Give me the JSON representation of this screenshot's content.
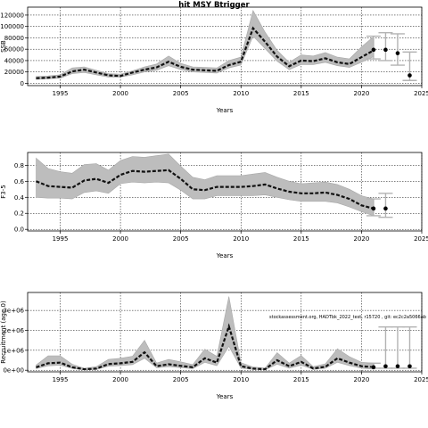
{
  "figure": {
    "title": "hit MSY Btrigger",
    "annotation": "stockassessment.org, HADTbk_2022_test, r15720 , git: ec2c2a5066ab"
  },
  "chart_data": [
    {
      "type": "line",
      "name": "ssb",
      "ylabel": "SSB",
      "xlabel": "Years",
      "xlim": [
        1992.3,
        2025.0
      ],
      "ylim": [
        -4000,
        134000
      ],
      "xticks": [
        1995,
        2000,
        2005,
        2010,
        2015,
        2020,
        2025
      ],
      "yticks": [
        0,
        20000,
        40000,
        60000,
        80000,
        100000,
        120000
      ],
      "ytick_labels": [
        "0",
        "20000",
        "40000",
        "60000",
        "80000",
        "100000",
        "120000"
      ],
      "grid": true,
      "x": [
        1993,
        1994,
        1995,
        1996,
        1997,
        1998,
        1999,
        2000,
        2001,
        2002,
        2003,
        2004,
        2005,
        2006,
        2007,
        2008,
        2009,
        2010,
        2011,
        2012,
        2013,
        2014,
        2015,
        2016,
        2017,
        2018,
        2019,
        2020,
        2021
      ],
      "median": [
        9000,
        10000,
        12000,
        21000,
        24000,
        19000,
        14000,
        13000,
        19000,
        24000,
        28000,
        38000,
        29000,
        24000,
        23000,
        22000,
        32000,
        38000,
        97000,
        73000,
        47000,
        30000,
        40000,
        39000,
        44000,
        37000,
        34000,
        46000,
        58000
      ],
      "lower": [
        7000,
        8000,
        9000,
        17000,
        19000,
        15000,
        11000,
        11000,
        15000,
        20000,
        23000,
        31000,
        24000,
        20000,
        19000,
        18000,
        27000,
        32000,
        83000,
        61000,
        39000,
        24000,
        33000,
        33000,
        37000,
        31000,
        28000,
        37000,
        47000
      ],
      "upper": [
        12000,
        13000,
        15000,
        27000,
        29000,
        23000,
        17000,
        16000,
        22000,
        29000,
        34000,
        48000,
        35000,
        29000,
        28000,
        27000,
        40000,
        46000,
        128000,
        90000,
        58000,
        37000,
        50000,
        48000,
        54000,
        46000,
        43000,
        64000,
        82000
      ],
      "forecast": [
        {
          "x": 2021,
          "median": 59000,
          "lower": 43000,
          "upper": 83000
        },
        {
          "x": 2022,
          "median": 59000,
          "lower": 40000,
          "upper": 89000
        },
        {
          "x": 2023,
          "median": 53000,
          "lower": 32000,
          "upper": 87000
        },
        {
          "x": 2024,
          "median": 14000,
          "lower": 5000,
          "upper": 55000
        }
      ]
    },
    {
      "type": "line",
      "name": "fbar",
      "ylabel": "F3-5",
      "xlabel": "Years",
      "xlim": [
        1992.3,
        2025.0
      ],
      "ylim": [
        -0.02,
        0.96
      ],
      "xticks": [
        1995,
        2000,
        2005,
        2010,
        2015,
        2020,
        2025
      ],
      "yticks": [
        0.0,
        0.2,
        0.4,
        0.6,
        0.8
      ],
      "ytick_labels": [
        "0.0",
        "0.2",
        "0.4",
        "0.6",
        "0.8"
      ],
      "grid": true,
      "x": [
        1993,
        1994,
        1995,
        1996,
        1997,
        1998,
        1999,
        2000,
        2001,
        2002,
        2003,
        2004,
        2005,
        2006,
        2007,
        2008,
        2009,
        2010,
        2011,
        2012,
        2013,
        2014,
        2015,
        2016,
        2017,
        2018,
        2019,
        2020,
        2021
      ],
      "median": [
        0.6,
        0.54,
        0.53,
        0.52,
        0.61,
        0.63,
        0.58,
        0.68,
        0.73,
        0.72,
        0.73,
        0.74,
        0.63,
        0.5,
        0.49,
        0.53,
        0.53,
        0.53,
        0.54,
        0.56,
        0.51,
        0.47,
        0.45,
        0.45,
        0.46,
        0.43,
        0.38,
        0.3,
        0.26
      ],
      "lower": [
        0.4,
        0.39,
        0.39,
        0.38,
        0.46,
        0.48,
        0.45,
        0.57,
        0.59,
        0.58,
        0.59,
        0.58,
        0.49,
        0.38,
        0.38,
        0.42,
        0.42,
        0.42,
        0.42,
        0.43,
        0.4,
        0.37,
        0.35,
        0.35,
        0.35,
        0.33,
        0.28,
        0.22,
        0.17
      ],
      "upper": [
        0.89,
        0.76,
        0.72,
        0.7,
        0.81,
        0.82,
        0.74,
        0.86,
        0.91,
        0.9,
        0.92,
        0.94,
        0.79,
        0.65,
        0.62,
        0.67,
        0.67,
        0.67,
        0.69,
        0.71,
        0.65,
        0.6,
        0.57,
        0.58,
        0.59,
        0.56,
        0.5,
        0.42,
        0.38
      ],
      "forecast": [
        {
          "x": 2021,
          "median": 0.26,
          "lower": 0.17,
          "upper": 0.38
        },
        {
          "x": 2022,
          "median": 0.26,
          "lower": 0.15,
          "upper": 0.45
        }
      ]
    },
    {
      "type": "line",
      "name": "recruitment",
      "ylabel": "Recruitment (age 0)",
      "xlabel": "Years",
      "xlim": [
        1992.3,
        2025.0
      ],
      "ylim": [
        -80000,
        3900000
      ],
      "xticks": [
        1995,
        2000,
        2005,
        2010,
        2015,
        2020,
        2025
      ],
      "yticks": [
        0,
        1000000,
        2000000,
        3000000
      ],
      "ytick_labels": [
        "0e+00",
        "1e+06",
        "2e+06",
        "3e+06"
      ],
      "grid": true,
      "x": [
        1993,
        1994,
        1995,
        1996,
        1997,
        1998,
        1999,
        2000,
        2001,
        2002,
        2003,
        2004,
        2005,
        2006,
        2007,
        2008,
        2009,
        2010,
        2011,
        2012,
        2013,
        2014,
        2015,
        2016,
        2017,
        2018,
        2019,
        2020,
        2021
      ],
      "median": [
        150000,
        350000,
        380000,
        150000,
        50000,
        80000,
        310000,
        350000,
        420000,
        900000,
        200000,
        300000,
        220000,
        150000,
        600000,
        380000,
        2200000,
        200000,
        80000,
        50000,
        500000,
        200000,
        420000,
        90000,
        170000,
        600000,
        380000,
        200000,
        150000
      ],
      "lower": [
        80000,
        220000,
        250000,
        90000,
        20000,
        40000,
        200000,
        230000,
        280000,
        600000,
        120000,
        180000,
        130000,
        80000,
        400000,
        230000,
        1200000,
        110000,
        40000,
        20000,
        300000,
        100000,
        250000,
        40000,
        100000,
        400000,
        230000,
        100000,
        60000
      ],
      "upper": [
        260000,
        720000,
        720000,
        300000,
        100000,
        180000,
        540000,
        600000,
        700000,
        1500000,
        360000,
        540000,
        420000,
        280000,
        1050000,
        700000,
        3700000,
        380000,
        160000,
        110000,
        880000,
        360000,
        740000,
        180000,
        320000,
        1080000,
        680000,
        400000,
        360000
      ],
      "forecast": [
        {
          "x": 2021,
          "median": 150000,
          "lower": 100000,
          "upper": 350000
        },
        {
          "x": 2022,
          "median": 200000,
          "lower": 100000,
          "upper": 2170000
        },
        {
          "x": 2023,
          "median": 200000,
          "lower": 100000,
          "upper": 2170000
        },
        {
          "x": 2024,
          "median": 200000,
          "lower": 100000,
          "upper": 2170000
        }
      ]
    }
  ]
}
